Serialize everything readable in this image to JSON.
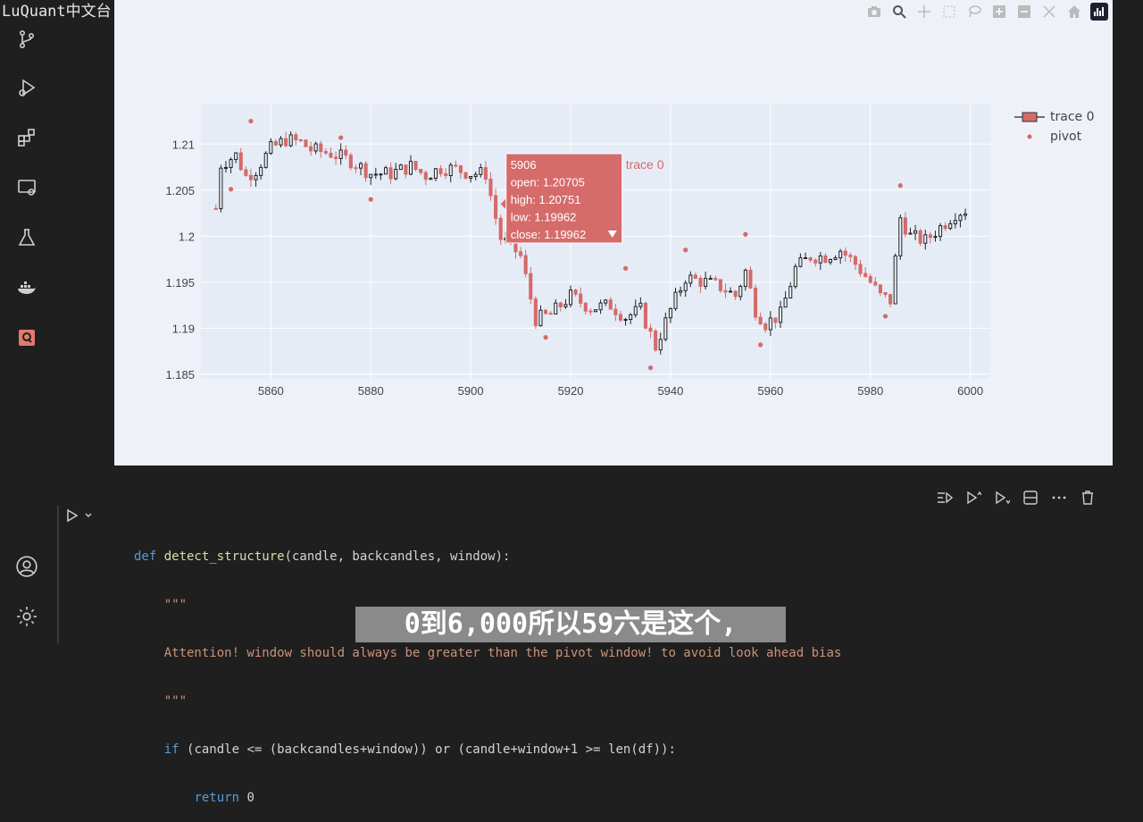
{
  "watermark": "LuQuant中文台",
  "activity_bar": {
    "icons": [
      "source-control-icon",
      "run-debug-icon",
      "extensions-icon",
      "remote-explorer-icon",
      "testing-icon",
      "docker-icon",
      "jupyter-icon"
    ],
    "bottom_icons": [
      "account-icon",
      "settings-icon"
    ]
  },
  "modebar": [
    "camera-icon",
    "zoom-icon",
    "pan-icon",
    "box-select-icon",
    "lasso-icon",
    "zoom-in-icon",
    "zoom-out-icon",
    "autoscale-icon",
    "reset-axes-icon",
    "plotly-logo-icon"
  ],
  "chart_data": {
    "type": "candlestick",
    "x_ticks": [
      "5860",
      "5880",
      "5900",
      "5920",
      "5940",
      "5960",
      "5980",
      "6000"
    ],
    "y_ticks": [
      "1.185",
      "1.19",
      "1.195",
      "1.2",
      "1.205",
      "1.21"
    ],
    "xlim": [
      5846,
      6004
    ],
    "ylim": [
      1.1845,
      1.2143
    ],
    "grid": true,
    "legend": {
      "position": "top-right",
      "entries": [
        "trace 0",
        "pivot"
      ]
    },
    "colors": {
      "up": "#222222",
      "down": "#d46a6a",
      "pivot": "#d46a6a",
      "hover_bg": "#d66b6b"
    },
    "tooltip": {
      "x": "5906",
      "open": "open: 1.20705",
      "high": "high: 1.20751",
      "low": "low: 1.19962",
      "close": "close: 1.19962",
      "trace": "trace 0"
    },
    "close_path": [
      [
        5850,
        1.2078
      ],
      [
        5853,
        1.2088
      ],
      [
        5855,
        1.2065
      ],
      [
        5857,
        1.2072
      ],
      [
        5860,
        1.2095
      ],
      [
        5863,
        1.2105
      ],
      [
        5866,
        1.2102
      ],
      [
        5868,
        1.2094
      ],
      [
        5872,
        1.209
      ],
      [
        5876,
        1.2082
      ],
      [
        5880,
        1.2068
      ],
      [
        5884,
        1.2068
      ],
      [
        5888,
        1.2076
      ],
      [
        5891,
        1.2066
      ],
      [
        5894,
        1.2074
      ],
      [
        5897,
        1.2073
      ],
      [
        5900,
        1.2068
      ],
      [
        5903,
        1.2068
      ],
      [
        5906,
        1.1996
      ],
      [
        5908,
        1.199
      ],
      [
        5910,
        1.1978
      ],
      [
        5913,
        1.191
      ],
      [
        5916,
        1.1915
      ],
      [
        5920,
        1.1935
      ],
      [
        5924,
        1.1922
      ],
      [
        5928,
        1.1925
      ],
      [
        5931,
        1.1912
      ],
      [
        5934,
        1.192
      ],
      [
        5937,
        1.188
      ],
      [
        5940,
        1.192
      ],
      [
        5943,
        1.1955
      ],
      [
        5947,
        1.195
      ],
      [
        5950,
        1.1945
      ],
      [
        5953,
        1.1935
      ],
      [
        5955,
        1.1962
      ],
      [
        5957,
        1.192
      ],
      [
        5959,
        1.1905
      ],
      [
        5962,
        1.1915
      ],
      [
        5965,
        1.1965
      ],
      [
        5968,
        1.1978
      ],
      [
        5971,
        1.1978
      ],
      [
        5974,
        1.1985
      ],
      [
        5977,
        1.197
      ],
      [
        5980,
        1.195
      ],
      [
        5982,
        1.1935
      ],
      [
        5984,
        1.193
      ],
      [
        5986,
        1.202
      ],
      [
        5988,
        1.2
      ],
      [
        5991,
        1.1995
      ],
      [
        5994,
        1.201
      ],
      [
        5997,
        1.2025
      ],
      [
        6000,
        1.203
      ]
    ],
    "pivots": [
      [
        5852,
        1.2051
      ],
      [
        5856,
        1.2125
      ],
      [
        5874,
        1.2107
      ],
      [
        5880,
        1.204
      ],
      [
        5915,
        1.189
      ],
      [
        5931,
        1.1965
      ],
      [
        5936,
        1.1857
      ],
      [
        5943,
        1.1985
      ],
      [
        5955,
        1.2002
      ],
      [
        5958,
        1.1882
      ],
      [
        5983,
        1.1913
      ],
      [
        5986,
        1.2055
      ]
    ]
  },
  "cell_toolbar": [
    "run-by-line-icon",
    "execute-above-icon",
    "execute-below-icon",
    "split-cell-icon",
    "more-actions-icon",
    "delete-cell-icon"
  ],
  "code_lines": [
    {
      "kw": "def ",
      "fn": "detect_structure",
      "rest": "(candle, backcandles, window):"
    },
    {
      "indent": "    ",
      "str": "\"\"\""
    },
    {
      "indent": "    ",
      "str": "Attention! window should always be greater than the pivot window! to avoid look ahead bias"
    },
    {
      "indent": "    ",
      "str": "\"\"\""
    },
    {
      "indent": "    ",
      "kw": "if ",
      "rest": "(candle <= (backcandles+window)) or (candle+window+1 >= len(df)):"
    },
    {
      "indent": "        ",
      "kw": "return ",
      "rest": "0"
    }
  ],
  "subtitle": "0到6,000所以59六是这个,"
}
